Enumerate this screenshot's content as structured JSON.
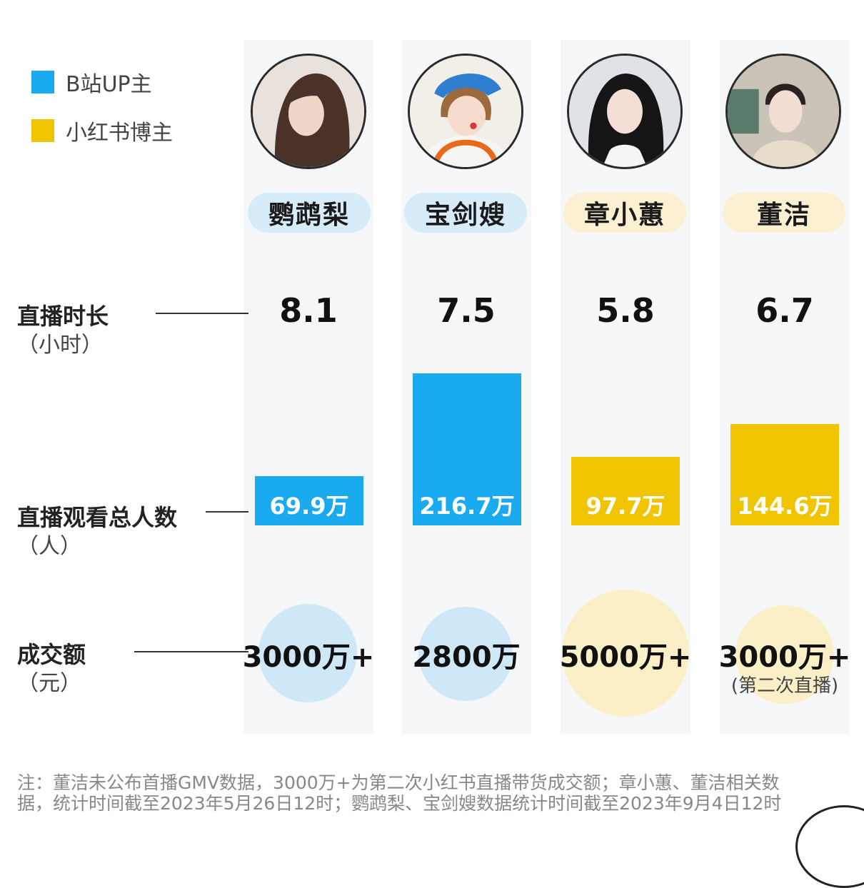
{
  "legend": [
    {
      "label": "B站UP主",
      "color": "#1aaaf0"
    },
    {
      "label": "小红书博主",
      "color": "#f0c400"
    }
  ],
  "colors": {
    "blue_bar": "#1aaaf0",
    "yellow_bar": "#f0c400",
    "blue_pill": "#d6ecf8",
    "yellow_pill": "#fbf1d2",
    "blue_circle": "#cfe8f7",
    "yellow_circle": "#fbefc8"
  },
  "rows": {
    "duration": {
      "label": "直播时长",
      "unit": "（小时）"
    },
    "viewers": {
      "label": "直播观看总人数",
      "unit": "（人）"
    },
    "gmv": {
      "label": "成交额",
      "unit": "（元）"
    }
  },
  "chart_data": {
    "type": "bar",
    "categories": [
      "鹦鹉梨",
      "宝剑嫂",
      "章小蕙",
      "董洁"
    ],
    "platform": [
      "B站UP主",
      "B站UP主",
      "小红书博主",
      "小红书博主"
    ],
    "duration_hours": [
      8.1,
      7.5,
      5.8,
      6.7
    ],
    "duration_labels": [
      "8.1",
      "7.5",
      "5.8",
      "6.7"
    ],
    "viewers_wan": [
      69.9,
      216.7,
      97.7,
      144.6
    ],
    "viewers_labels": [
      "69.9万",
      "216.7万",
      "97.7万",
      "144.6万"
    ],
    "gmv_wan": [
      3000,
      2800,
      5000,
      3000
    ],
    "gmv_labels": [
      "3000万+",
      "2800万",
      "5000万+",
      "3000万+"
    ],
    "gmv_notes": [
      "",
      "",
      "",
      "(第二次直播)"
    ]
  },
  "footnote": "注：董洁未公布首播GMV数据，3000万+为第二次小红书直播带货成交额；章小蕙、董洁相关数据，统计时间截至2023年5月26日12时；鹦鹉梨、宝剑嫂数据统计时间截至2023年9月4日12时"
}
